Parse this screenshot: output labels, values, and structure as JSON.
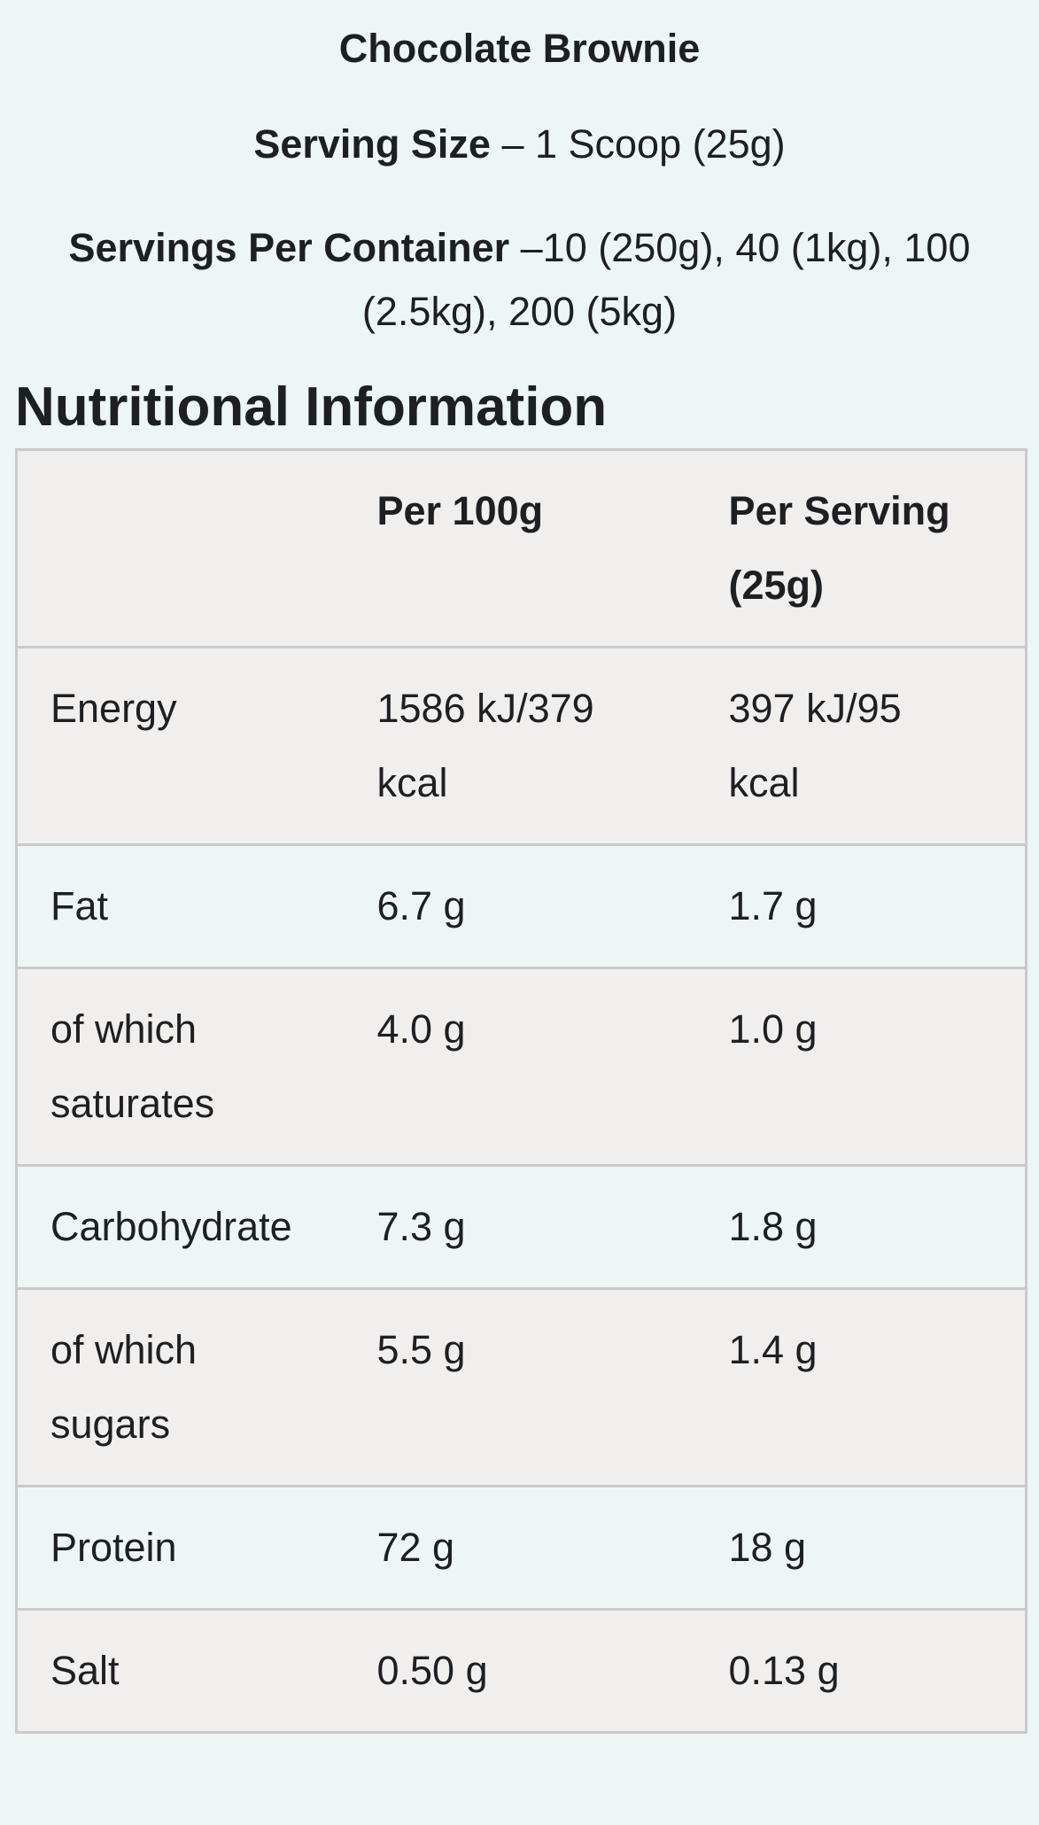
{
  "page": {
    "background_color": "#ecf6f5",
    "text_color": "#1e1f22",
    "row_gray_color": "#f0efed",
    "row_mint_color": "#edf6f5",
    "table_border_color": "#c9cacb"
  },
  "header": {
    "product_title": "Chocolate Brownie",
    "serving_size_label": "Serving Size",
    "serving_size_rest": " – 1 Scoop (25g)",
    "servings_label": "Servings Per Container",
    "servings_rest_line1": " –10 (250g), 40 (1kg), 100",
    "servings_line2": "(2.5kg), 200 (5kg)"
  },
  "section_title": "Nutritional Information",
  "table": {
    "columns": [
      "",
      "Per 100g",
      "Per Serving (25g)"
    ],
    "rows": [
      {
        "label": "Energy",
        "per_100g": "1586 kJ/379 kcal",
        "per_serving": "397 kJ/95 kcal"
      },
      {
        "label": "Fat",
        "per_100g": "6.7 g",
        "per_serving": "1.7 g"
      },
      {
        "label": "of which saturates",
        "per_100g": "4.0 g",
        "per_serving": "1.0 g"
      },
      {
        "label": "Carbohydrate",
        "per_100g": "7.3 g",
        "per_serving": "1.8 g"
      },
      {
        "label": "of which sugars",
        "per_100g": "5.5 g",
        "per_serving": "1.4 g"
      },
      {
        "label": "Protein",
        "per_100g": "72 g",
        "per_serving": "18 g"
      },
      {
        "label": "Salt",
        "per_100g": "0.50 g",
        "per_serving": "0.13 g"
      }
    ]
  }
}
